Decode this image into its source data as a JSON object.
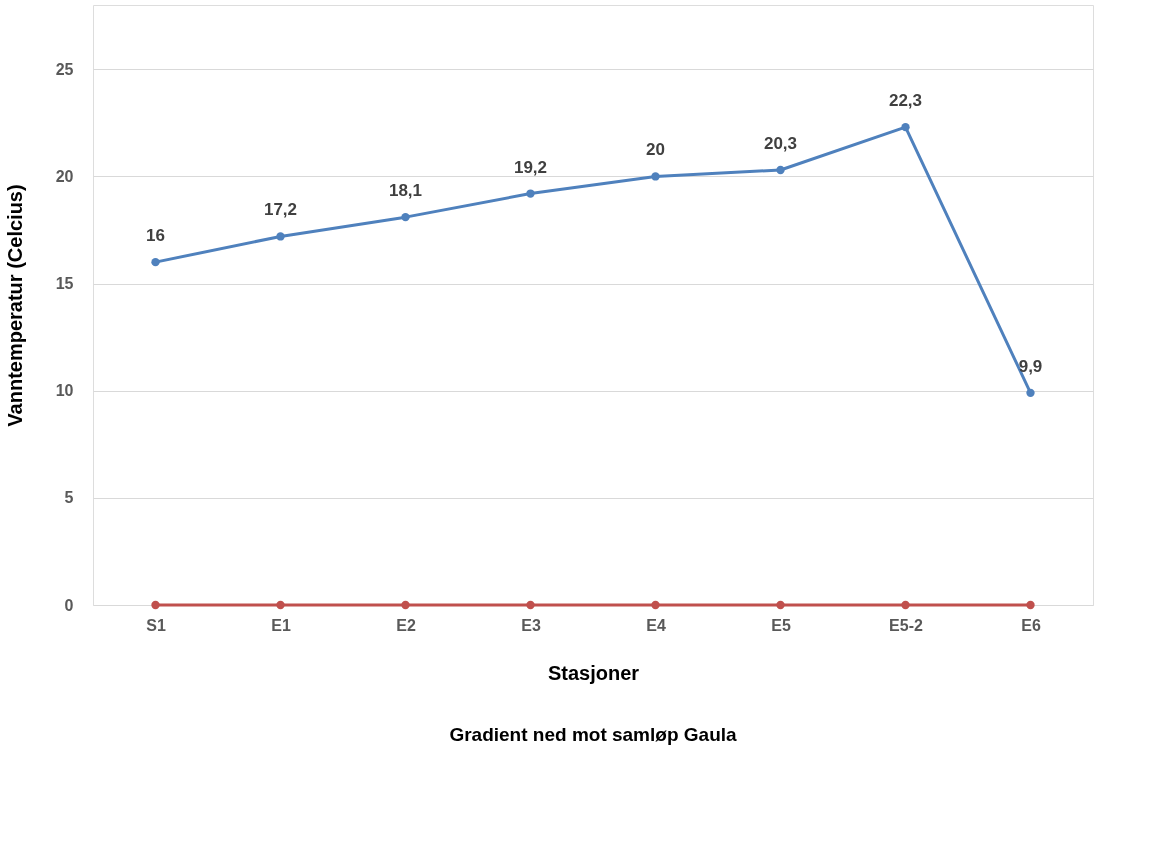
{
  "chart_data": {
    "type": "line",
    "xlabel": "Stasjoner",
    "ylabel": "Vanntemperatur (Celcius)",
    "categories": [
      "S1",
      "E1",
      "E2",
      "E3",
      "E4",
      "E5",
      "E5-2",
      "E6"
    ],
    "series": [
      {
        "color": "#4f81bd",
        "values": [
          16,
          17.2,
          18.1,
          19.2,
          20,
          20.3,
          22.3,
          9.9
        ],
        "value_labels": [
          "16",
          "17,2",
          "18,1",
          "19,2",
          "20",
          "20,3",
          "22,3",
          "9,9"
        ]
      },
      {
        "color": "#c0504d",
        "values": [
          0,
          0,
          0,
          0,
          0,
          0,
          0,
          0
        ]
      }
    ],
    "ylim": [
      0,
      28
    ],
    "yticks": [
      0,
      5,
      10,
      15,
      20,
      25
    ],
    "grid": "y",
    "legend": false,
    "marker": "circle",
    "line_style": "solid",
    "annotations": [
      "Gradient ned mot samløp Gaula"
    ]
  }
}
